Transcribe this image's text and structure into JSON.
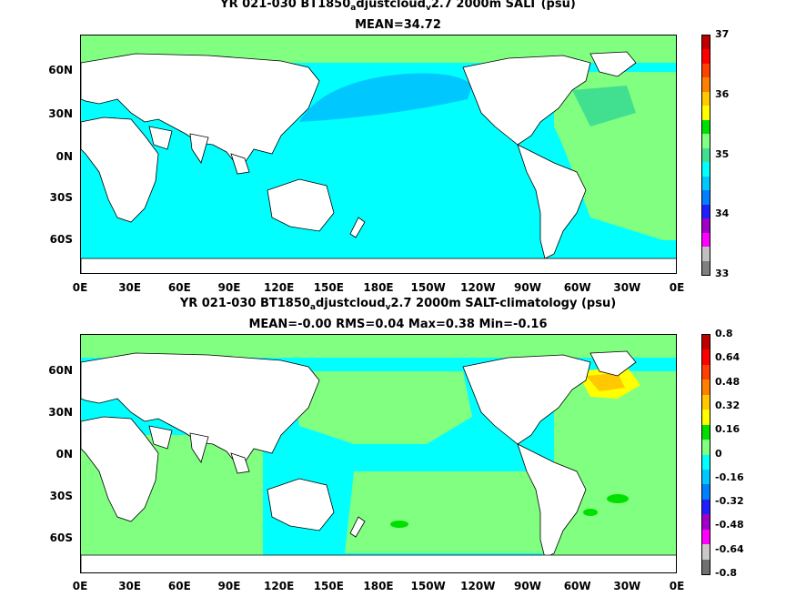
{
  "top": {
    "title_pre": "YR 021-030 BT1850",
    "title_sub1": "a",
    "title_mid": "djustcloud",
    "title_sub2": "v",
    "title_post": "2.7 2000m SALT (psu)",
    "subtitle": "MEAN=34.72",
    "colorbar_ticks": [
      "37",
      "36",
      "35",
      "34",
      "33"
    ],
    "colors": [
      "#808080",
      "#c0c0c0",
      "#ff00ff",
      "#a000c8",
      "#2020ff",
      "#0080ff",
      "#00c8ff",
      "#00ffff",
      "#40e090",
      "#80ff80",
      "#00e000",
      "#ffff00",
      "#ffc800",
      "#ff8000",
      "#ff4000",
      "#ff0000",
      "#c00000"
    ]
  },
  "bottom": {
    "title_pre": "YR 021-030 BT1850",
    "title_sub1": "a",
    "title_mid": "djustcloud",
    "title_sub2": "v",
    "title_post": "2.7 2000m SALT-climatology (psu)",
    "subtitle": "MEAN=-0.00   RMS=0.04   Max=0.38   Min=-0.16",
    "colorbar_ticks": [
      "0.8",
      "0.64",
      "0.48",
      "0.32",
      "0.16",
      "0",
      "-0.16",
      "-0.32",
      "-0.48",
      "-0.64",
      "-0.8"
    ],
    "colors": [
      "#707070",
      "#c8c8c8",
      "#ff00ff",
      "#a000c8",
      "#2020ff",
      "#0080ff",
      "#00c8ff",
      "#00ffff",
      "#80ff80",
      "#00e000",
      "#ffff00",
      "#ffc800",
      "#ff8000",
      "#ff4000",
      "#ff0000",
      "#c00000"
    ]
  },
  "lat_labels": [
    "60N",
    "30N",
    "0N",
    "30S",
    "60S"
  ],
  "lon_labels": [
    "0E",
    "30E",
    "60E",
    "90E",
    "120E",
    "150E",
    "180E",
    "150W",
    "120W",
    "90W",
    "60W",
    "30W",
    "0E"
  ]
}
